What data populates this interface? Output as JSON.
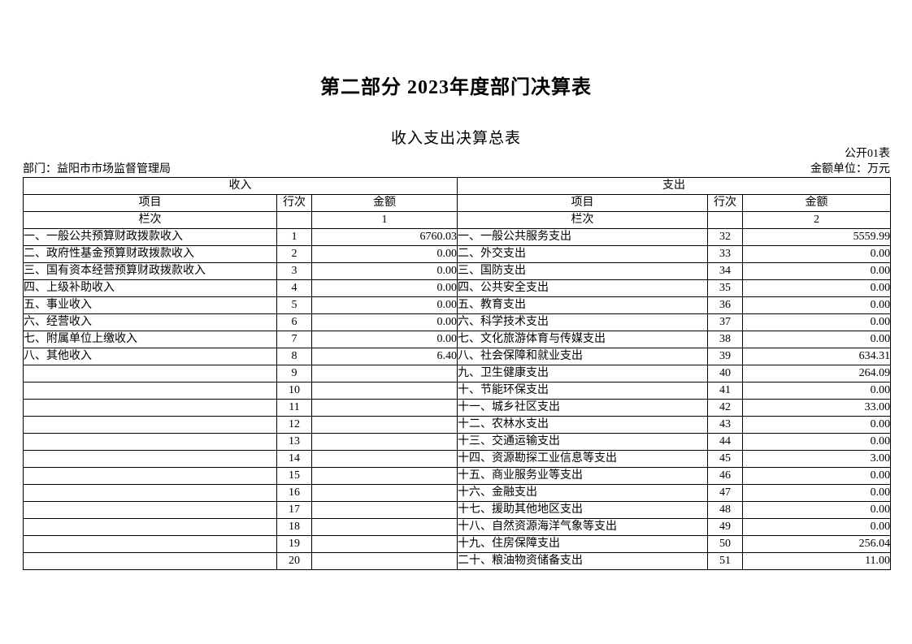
{
  "page": {
    "title": "第二部分 2023年度部门决算表",
    "subtitle": "收入支出决算总表",
    "table_code": "公开01表",
    "department_label": "部门：益阳市市场监督管理局",
    "unit_label": "金额单位：万元"
  },
  "table": {
    "income_header": "收入",
    "expense_header": "支出",
    "col_item": "项目",
    "col_row_no": "行次",
    "col_amount": "金额",
    "col_index_label": "栏次",
    "income_col_index": "1",
    "expense_col_index": "2",
    "income_rows": [
      {
        "item": "一、一般公共预算财政拨款收入",
        "row_no": "1",
        "amount": "6760.03"
      },
      {
        "item": "二、政府性基金预算财政拨款收入",
        "row_no": "2",
        "amount": "0.00"
      },
      {
        "item": "三、国有资本经营预算财政拨款收入",
        "row_no": "3",
        "amount": "0.00"
      },
      {
        "item": "四、上级补助收入",
        "row_no": "4",
        "amount": "0.00"
      },
      {
        "item": "五、事业收入",
        "row_no": "5",
        "amount": "0.00"
      },
      {
        "item": "六、经营收入",
        "row_no": "6",
        "amount": "0.00"
      },
      {
        "item": "七、附属单位上缴收入",
        "row_no": "7",
        "amount": "0.00"
      },
      {
        "item": "八、其他收入",
        "row_no": "8",
        "amount": "6.40"
      },
      {
        "item": "",
        "row_no": "9",
        "amount": ""
      },
      {
        "item": "",
        "row_no": "10",
        "amount": ""
      },
      {
        "item": "",
        "row_no": "11",
        "amount": ""
      },
      {
        "item": "",
        "row_no": "12",
        "amount": ""
      },
      {
        "item": "",
        "row_no": "13",
        "amount": ""
      },
      {
        "item": "",
        "row_no": "14",
        "amount": ""
      },
      {
        "item": "",
        "row_no": "15",
        "amount": ""
      },
      {
        "item": "",
        "row_no": "16",
        "amount": ""
      },
      {
        "item": "",
        "row_no": "17",
        "amount": ""
      },
      {
        "item": "",
        "row_no": "18",
        "amount": ""
      },
      {
        "item": "",
        "row_no": "19",
        "amount": ""
      },
      {
        "item": "",
        "row_no": "20",
        "amount": ""
      }
    ],
    "expense_rows": [
      {
        "item": "一、一般公共服务支出",
        "row_no": "32",
        "amount": "5559.99"
      },
      {
        "item": "二、外交支出",
        "row_no": "33",
        "amount": "0.00"
      },
      {
        "item": "三、国防支出",
        "row_no": "34",
        "amount": "0.00"
      },
      {
        "item": "四、公共安全支出",
        "row_no": "35",
        "amount": "0.00"
      },
      {
        "item": "五、教育支出",
        "row_no": "36",
        "amount": "0.00"
      },
      {
        "item": "六、科学技术支出",
        "row_no": "37",
        "amount": "0.00"
      },
      {
        "item": "七、文化旅游体育与传媒支出",
        "row_no": "38",
        "amount": "0.00"
      },
      {
        "item": "八、社会保障和就业支出",
        "row_no": "39",
        "amount": "634.31"
      },
      {
        "item": "九、卫生健康支出",
        "row_no": "40",
        "amount": "264.09"
      },
      {
        "item": "十、节能环保支出",
        "row_no": "41",
        "amount": "0.00"
      },
      {
        "item": "十一、城乡社区支出",
        "row_no": "42",
        "amount": "33.00"
      },
      {
        "item": "十二、农林水支出",
        "row_no": "43",
        "amount": "0.00"
      },
      {
        "item": "十三、交通运输支出",
        "row_no": "44",
        "amount": "0.00"
      },
      {
        "item": "十四、资源勘探工业信息等支出",
        "row_no": "45",
        "amount": "3.00"
      },
      {
        "item": "十五、商业服务业等支出",
        "row_no": "46",
        "amount": "0.00"
      },
      {
        "item": "十六、金融支出",
        "row_no": "47",
        "amount": "0.00"
      },
      {
        "item": "十七、援助其他地区支出",
        "row_no": "48",
        "amount": "0.00"
      },
      {
        "item": "十八、自然资源海洋气象等支出",
        "row_no": "49",
        "amount": "0.00"
      },
      {
        "item": "十九、住房保障支出",
        "row_no": "50",
        "amount": "256.04"
      },
      {
        "item": "二十、粮油物资储备支出",
        "row_no": "51",
        "amount": "11.00"
      }
    ]
  }
}
